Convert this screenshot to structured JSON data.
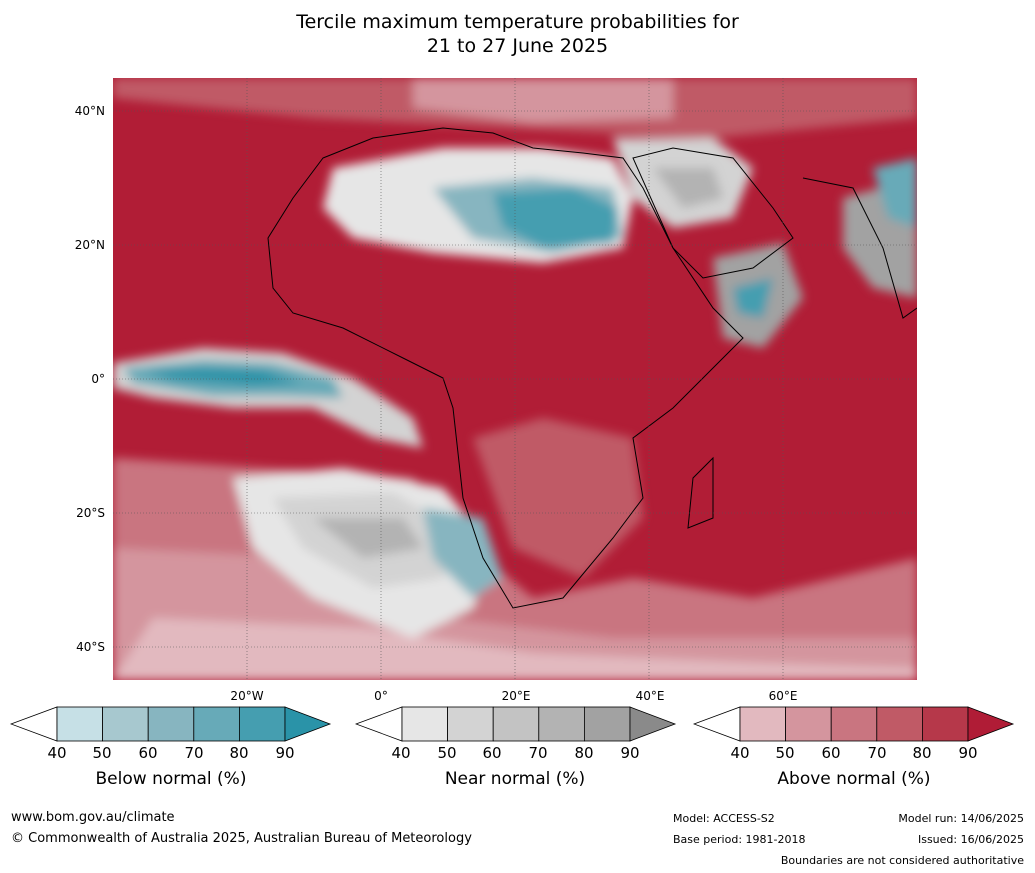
{
  "title_line1": "Tercile maximum temperature probabilities for",
  "title_line2": "21 to 27 June 2025",
  "lat_labels": [
    "40°N",
    "20°N",
    "0°",
    "20°S",
    "40°S"
  ],
  "lon_labels": [
    "20°W",
    "0°",
    "20°E",
    "40°E",
    "60°E"
  ],
  "colorbars": [
    {
      "title": "Below normal (%)",
      "ticks": [
        "40",
        "50",
        "60",
        "70",
        "80",
        "90"
      ],
      "colors": [
        "#ffffff",
        "#c6e0e6",
        "#a7c8cf",
        "#87b5c0",
        "#67aab8",
        "#459eb0",
        "#2a93a8"
      ]
    },
    {
      "title": "Near normal (%)",
      "ticks": [
        "40",
        "50",
        "60",
        "70",
        "80",
        "90"
      ],
      "colors": [
        "#ffffff",
        "#e6e6e6",
        "#d3d3d3",
        "#c3c3c3",
        "#b3b3b3",
        "#a2a2a2",
        "#8a8a8a"
      ]
    },
    {
      "title": "Above normal (%)",
      "ticks": [
        "40",
        "50",
        "60",
        "70",
        "80",
        "90"
      ],
      "colors": [
        "#ffffff",
        "#e2b9bf",
        "#d4959e",
        "#c97580",
        "#c05a66",
        "#b6384a",
        "#b01c36"
      ]
    }
  ],
  "footer": {
    "url": "www.bom.gov.au/climate",
    "copyright": "© Commonwealth of Australia 2025, Australian Bureau of Meteorology",
    "model": "Model: ACCESS-S2",
    "base_period": "Base period: 1981-2018",
    "model_run": "Model run: 14/06/2025",
    "issued": "Issued: 16/06/2025",
    "disclaimer": "Boundaries are not considered authoritative"
  }
}
